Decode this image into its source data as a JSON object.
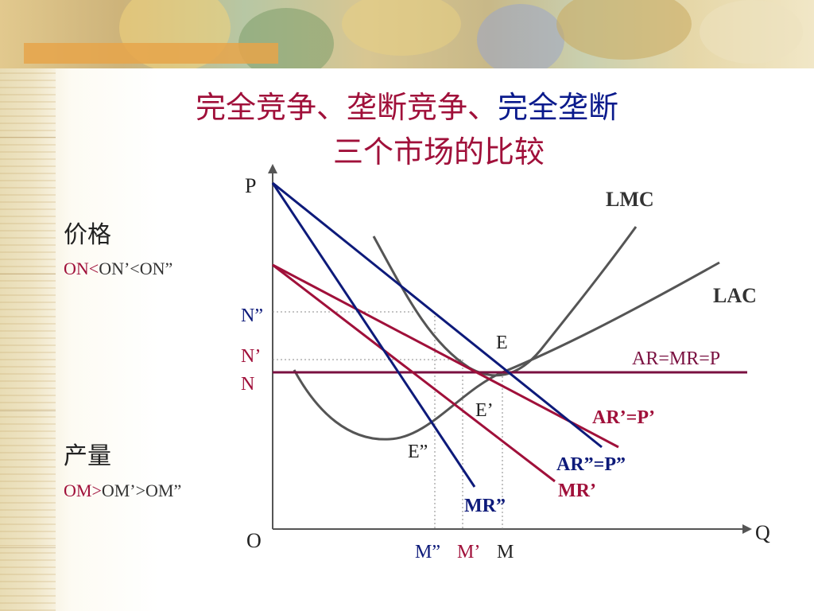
{
  "title": {
    "line1_a": "完全竞争、",
    "line1_b": "垄断竞争、",
    "line1_c": "完全垄断",
    "line2": "三个市场的比较"
  },
  "left_panel": {
    "price_label": "价格",
    "price_formula_a": "ON<",
    "price_formula_b": "ON’<ON”",
    "quantity_label": "产量",
    "quantity_formula_a": "OM>",
    "quantity_formula_b": "OM’>OM”"
  },
  "axes": {
    "y_label": "P",
    "x_label": "Q",
    "origin": "O"
  },
  "price_ticks": [
    "N”",
    "N’",
    "N"
  ],
  "quantity_ticks": [
    "M”",
    "M’",
    "M"
  ],
  "points": [
    "E",
    "E’",
    "E”"
  ],
  "curves": {
    "lmc": "LMC",
    "lac": "LAC",
    "ar_mr_p": "AR=MR=P",
    "ar1_p": "AR’=P’",
    "ar2_p": "AR”=P”",
    "mr1": "MR’",
    "mr2": "MR”"
  },
  "colors": {
    "title_red": "#a0103a",
    "title_blue": "#0a1a8c",
    "curve_gray": "#555555",
    "monopoly_blue": "#0d1a7a",
    "competitive_red": "#a0103a",
    "perfect_purple": "#7a1040"
  }
}
